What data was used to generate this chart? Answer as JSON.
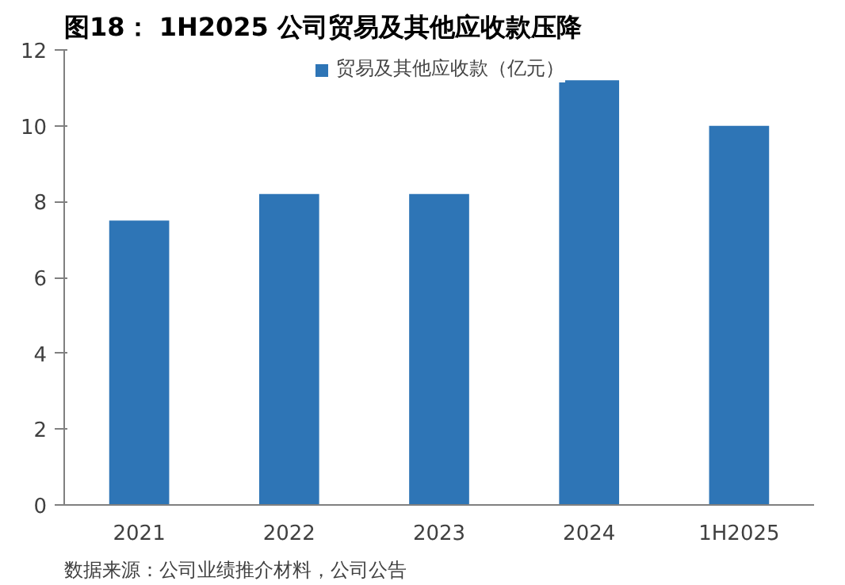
{
  "chart_data": {
    "type": "bar",
    "title": "图18：  1H2025 公司贸易及其他应收款压降",
    "categories": [
      "2021",
      "2022",
      "2023",
      "2024",
      "1H2025"
    ],
    "series": [
      {
        "name": "贸易及其他应收款（亿元）",
        "color": "#2e75b6",
        "values": [
          7.5,
          8.2,
          8.2,
          11.2,
          10.0
        ]
      }
    ],
    "ylim": [
      0,
      12
    ],
    "yticks": [
      0,
      2,
      4,
      6,
      8,
      10,
      12
    ],
    "grid": false,
    "legend": "top",
    "annotations": [
      "数据来源：公司业绩推介材料，公司公告"
    ]
  }
}
